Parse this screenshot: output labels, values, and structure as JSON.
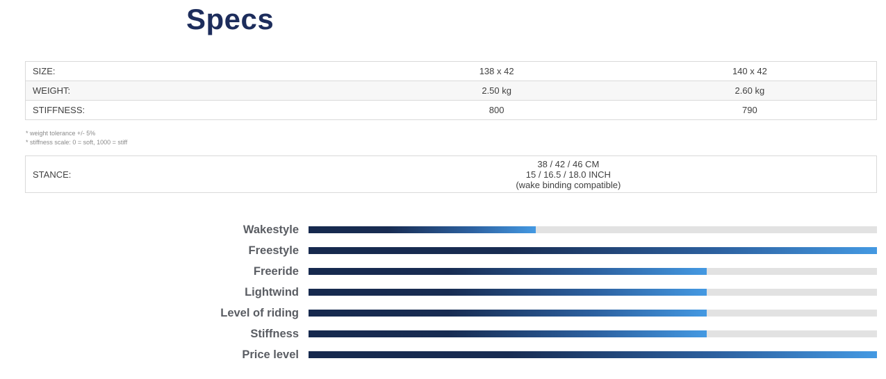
{
  "page": {
    "title": "Specs"
  },
  "colors": {
    "title_navy": "#1d2d5c",
    "bar_gradient_start": "#16294e",
    "bar_gradient_end": "#4499e2",
    "bar_track": "#e2e2e2",
    "row_alt_background": "#f7f7f7",
    "chart_label_gray": "#5a5d63"
  },
  "specs_table": {
    "rows": [
      {
        "label": "SIZE:",
        "value1": "138 x 42",
        "value2": "140 x 42"
      },
      {
        "label": "WEIGHT:",
        "value1": "2.50 kg",
        "value2": "2.60 kg"
      },
      {
        "label": "STIFFNESS:",
        "value1": "800",
        "value2": "790"
      }
    ]
  },
  "footnotes": {
    "line1": "* weight tolerance +/- 5%",
    "line2": "* stiffness scale: 0 = soft, 1000 = stiff"
  },
  "stance": {
    "label": "STANCE:",
    "line1": "38 / 42 / 46 CM",
    "line2": "15 / 16.5 / 18.0 INCH",
    "line3": "(wake binding compatible)"
  },
  "chart_data": {
    "type": "bar",
    "orientation": "horizontal",
    "categories": [
      "Wakestyle",
      "Freestyle",
      "Freeride",
      "Lightwind",
      "Level of riding",
      "Stiffness",
      "Price level"
    ],
    "values": [
      40,
      100,
      70,
      70,
      70,
      70,
      100
    ],
    "value_range": [
      0,
      100
    ],
    "grid": false,
    "legend": "none",
    "track_color": "#e2e2e2",
    "bar_gradient": [
      "#16294e",
      "#4499e2"
    ]
  }
}
